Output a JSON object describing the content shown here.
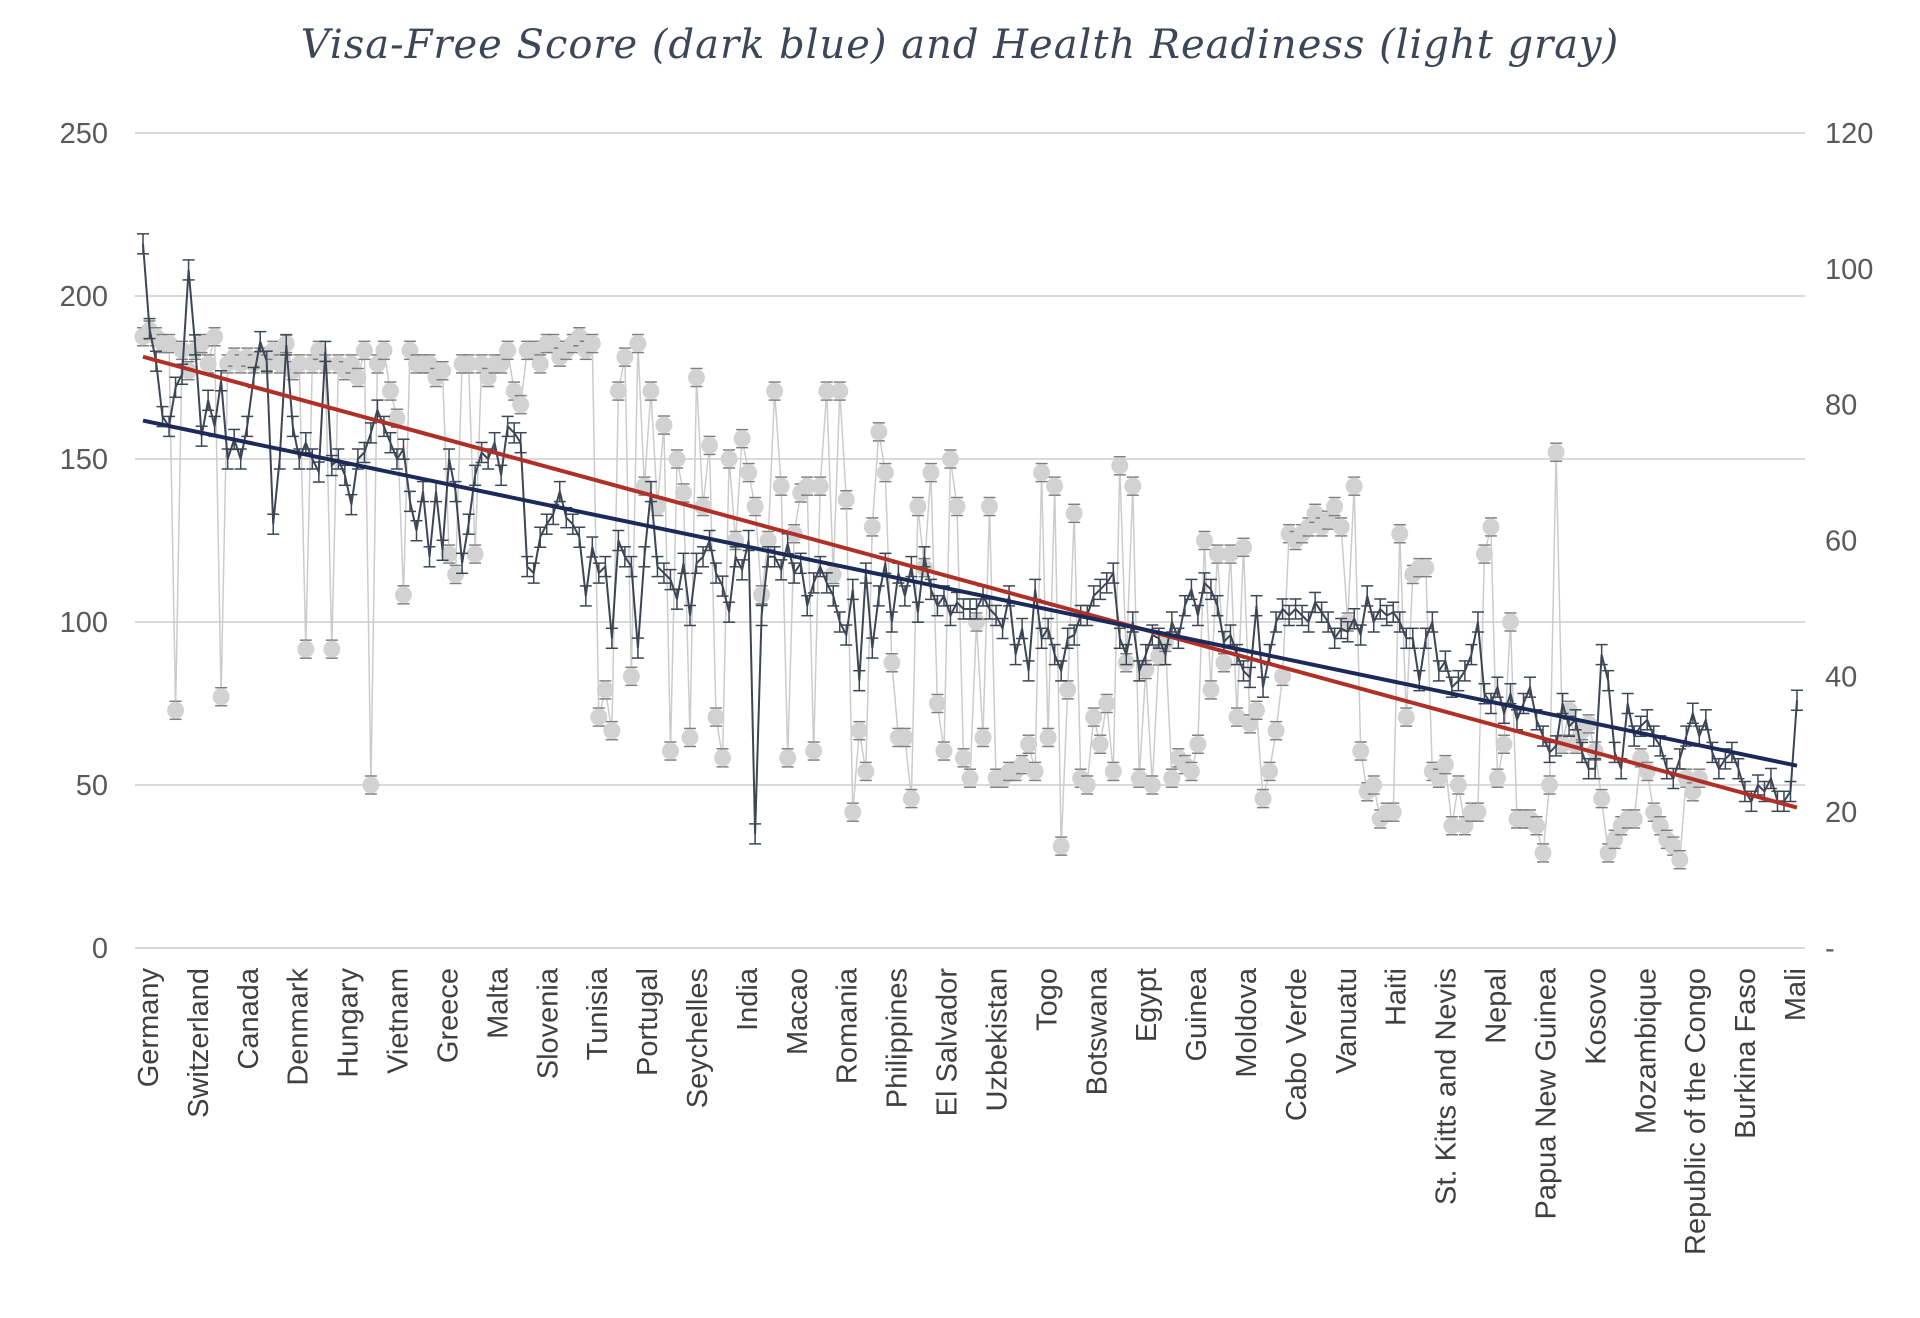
{
  "chart_data": {
    "type": "line",
    "title": "Visa-Free Score (dark blue) and Health Readiness (light gray)",
    "xlabel": "",
    "ylabel": "",
    "ylim": [
      0,
      250
    ],
    "y2lim": [
      0,
      120
    ],
    "y_ticks": [
      "0",
      "50",
      "100",
      "150",
      "200",
      "250"
    ],
    "y2_ticks": [
      "-",
      "20",
      "40",
      "60",
      "80",
      "100",
      "120"
    ],
    "grid": true,
    "legend": "none",
    "colors": {
      "visa_line": "#3d4654",
      "health_markers": "#d2d2d2",
      "health_line": "#cccccc",
      "visa_trend": "#1c2a5a",
      "health_trend": "#b03028",
      "grid": "#d9d9d9"
    },
    "categories": [
      "Germany",
      "Switzerland",
      "Canada",
      "Denmark",
      "Hungary",
      "Vietnam",
      "Greece",
      "Malta",
      "Slovenia",
      "Tunisia",
      "Portugal",
      "Seychelles",
      "India",
      "Macao",
      "Romania",
      "Philippines",
      "El Salvador",
      "Uzbekistan",
      "Togo",
      "Botswana",
      "Egypt",
      "Guinea",
      "Moldova",
      "Cabo Verde",
      "Vanuatu",
      "Haiti",
      "St. Kitts and Nevis",
      "Nepal",
      "Papua New Guinea",
      "Kosovo",
      "Mozambique",
      "Republic of the Congo",
      "Burkina Faso",
      "Mali"
    ],
    "visa_free_score": [
      216,
      190,
      180,
      163,
      160,
      172,
      176,
      208,
      185,
      157,
      168,
      160,
      174,
      150,
      156,
      150,
      160,
      175,
      186,
      180,
      130,
      150,
      185,
      160,
      150,
      155,
      150,
      146,
      183,
      148,
      150,
      145,
      136,
      150,
      152,
      158,
      165,
      160,
      155,
      150,
      153,
      137,
      128,
      140,
      120,
      140,
      122,
      150,
      140,
      118,
      130,
      145,
      152,
      150,
      155,
      145,
      160,
      158,
      155,
      117,
      115,
      126,
      130,
      133,
      140,
      132,
      130,
      126,
      108,
      123,
      115,
      117,
      95,
      125,
      120,
      117,
      92,
      120,
      140,
      117,
      115,
      113,
      107,
      118,
      102,
      118,
      120,
      125,
      115,
      111,
      103,
      120,
      116,
      125,
      35,
      102,
      120,
      120,
      116,
      124,
      115,
      118,
      105,
      112,
      117,
      112,
      108,
      100,
      96,
      110,
      82,
      115,
      92,
      108,
      118,
      100,
      115,
      108,
      117,
      103,
      120,
      110,
      105,
      108,
      102,
      106,
      104,
      104,
      104,
      108,
      104,
      102,
      98,
      108,
      90,
      98,
      85,
      110,
      95,
      98,
      90,
      85,
      95,
      96,
      102,
      102,
      108,
      110,
      112,
      115,
      95,
      90,
      100,
      85,
      90,
      96,
      95,
      90,
      100,
      95,
      105,
      110,
      102,
      112,
      110,
      105,
      94,
      96,
      90,
      85,
      83,
      105,
      80,
      90,
      100,
      104,
      102,
      104,
      102,
      100,
      106,
      103,
      100,
      95,
      98,
      97,
      101,
      96,
      108,
      100,
      104,
      102,
      103,
      100,
      95,
      95,
      82,
      95,
      100,
      85,
      88,
      80,
      82,
      85,
      90,
      100,
      78,
      75,
      80,
      72,
      78,
      70,
      75,
      80,
      70,
      65,
      60,
      62,
      75,
      68,
      70,
      60,
      55,
      55,
      90,
      82,
      60,
      55,
      75,
      65,
      68,
      70,
      65,
      62,
      55,
      52,
      58,
      65,
      72,
      65,
      70,
      60,
      55,
      58,
      60,
      55,
      48,
      45,
      50,
      48,
      52,
      45,
      45,
      48,
      76
    ],
    "health_readiness": [
      90,
      91,
      90,
      89,
      89,
      35,
      88,
      85,
      88,
      89,
      86,
      90,
      37,
      86,
      87,
      86,
      87,
      86,
      87,
      86,
      88,
      86,
      89,
      85,
      86,
      44,
      86,
      88,
      86,
      44,
      86,
      85,
      86,
      84,
      88,
      24,
      86,
      88,
      82,
      78,
      52,
      88,
      86,
      86,
      86,
      84,
      85,
      58,
      55,
      86,
      86,
      58,
      86,
      84,
      86,
      86,
      88,
      82,
      80,
      88,
      88,
      86,
      89,
      89,
      87,
      88,
      89,
      90,
      88,
      89,
      34,
      38,
      32,
      82,
      87,
      40,
      89,
      68,
      82,
      65,
      77,
      29,
      72,
      67,
      31,
      84,
      65,
      74,
      34,
      28,
      72,
      60,
      75,
      70,
      65,
      52,
      60,
      82,
      68,
      28,
      61,
      67,
      68,
      29,
      68,
      82,
      55,
      82,
      66,
      20,
      32,
      26,
      62,
      76,
      70,
      42,
      31,
      31,
      22,
      65,
      56,
      70,
      36,
      29,
      72,
      65,
      28,
      25,
      48,
      31,
      65,
      25,
      25,
      26,
      26,
      27,
      30,
      26,
      70,
      31,
      68,
      15,
      38,
      64,
      25,
      24,
      34,
      30,
      36,
      26,
      71,
      42,
      68,
      25,
      41,
      24,
      43,
      45,
      25,
      28,
      27,
      26,
      30,
      60,
      38,
      58,
      42,
      58,
      34,
      59,
      33,
      35,
      22,
      26,
      32,
      40,
      61,
      60,
      61,
      62,
      64,
      62,
      63,
      65,
      62,
      48,
      68,
      29,
      23,
      24,
      19,
      20,
      20,
      61,
      34,
      55,
      56,
      56,
      26,
      25,
      27,
      18,
      24,
      18,
      20,
      20,
      58,
      62,
      25,
      30,
      48,
      19,
      19,
      19,
      18,
      14,
      24,
      73,
      30,
      35,
      30,
      32,
      33,
      29,
      22,
      14,
      16,
      18,
      19,
      19,
      28,
      26,
      20,
      18,
      16,
      15,
      13,
      25,
      23,
      25
    ]
  }
}
